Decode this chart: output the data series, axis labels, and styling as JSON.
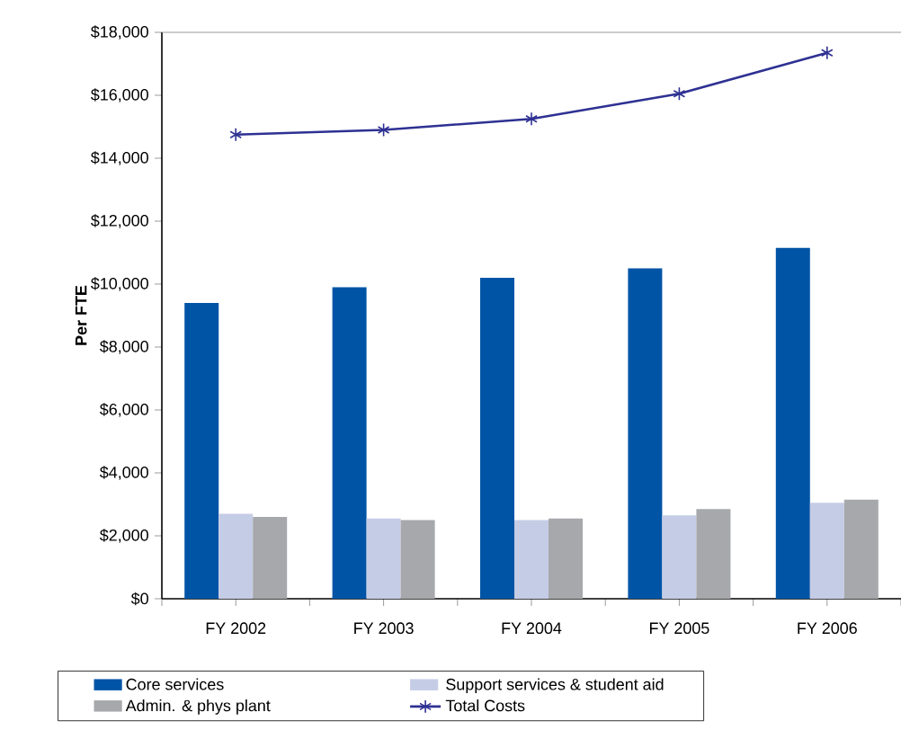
{
  "chart_data": {
    "type": "bar",
    "ylabel": "Per FTE",
    "categories": [
      "FY 2002",
      "FY 2003",
      "FY 2004",
      "FY 2005",
      "FY 2006"
    ],
    "series": [
      {
        "name": "Core services",
        "color": "#0054a6",
        "values": [
          9400,
          9900,
          10200,
          10500,
          11150
        ]
      },
      {
        "name": "Support services & student aid",
        "color": "#c5cce6",
        "values": [
          2700,
          2550,
          2500,
          2650,
          3050
        ]
      },
      {
        "name": "Admin. & phys plant",
        "color": "#a6a8ab",
        "values": [
          2600,
          2500,
          2550,
          2850,
          3150
        ]
      },
      {
        "name": "Total Costs",
        "type": "line",
        "color": "#2e3192",
        "marker": "cross",
        "line_style": "solid",
        "values": [
          14750,
          14900,
          15250,
          16050,
          17350
        ]
      }
    ],
    "ylim": [
      0,
      18000
    ],
    "yticks": [
      {
        "value": 0,
        "label": "$0"
      },
      {
        "value": 2000,
        "label": "$2,000"
      },
      {
        "value": 4000,
        "label": "$4,000"
      },
      {
        "value": 6000,
        "label": "$6,000"
      },
      {
        "value": 8000,
        "label": "$8,000"
      },
      {
        "value": 10000,
        "label": "$10,000"
      },
      {
        "value": 12000,
        "label": "$12,000"
      },
      {
        "value": 14000,
        "label": "$14,000"
      },
      {
        "value": 16000,
        "label": "$16,000"
      },
      {
        "value": 18000,
        "label": "$18,000"
      }
    ],
    "grid": false,
    "legend": "bottom"
  }
}
